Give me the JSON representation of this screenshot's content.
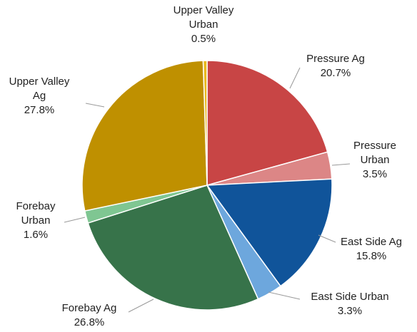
{
  "chart_data": {
    "type": "pie",
    "categories": [
      "Pressure Ag",
      "Pressure Urban",
      "East Side Ag",
      "East Side Urban",
      "Forebay Ag",
      "Forebay Urban",
      "Upper Valley Ag",
      "Upper Valley Urban"
    ],
    "values": [
      20.7,
      3.5,
      15.8,
      3.3,
      26.8,
      1.6,
      27.8,
      0.5
    ],
    "value_labels": [
      "20.7%",
      "3.5%",
      "15.8%",
      "3.3%",
      "26.8%",
      "1.6%",
      "27.8%",
      "0.5%"
    ],
    "colors": [
      "#c84545",
      "#dc8686",
      "#10549a",
      "#6da7dd",
      "#37734a",
      "#7fc692",
      "#bf9000",
      "#e9b81f"
    ]
  }
}
